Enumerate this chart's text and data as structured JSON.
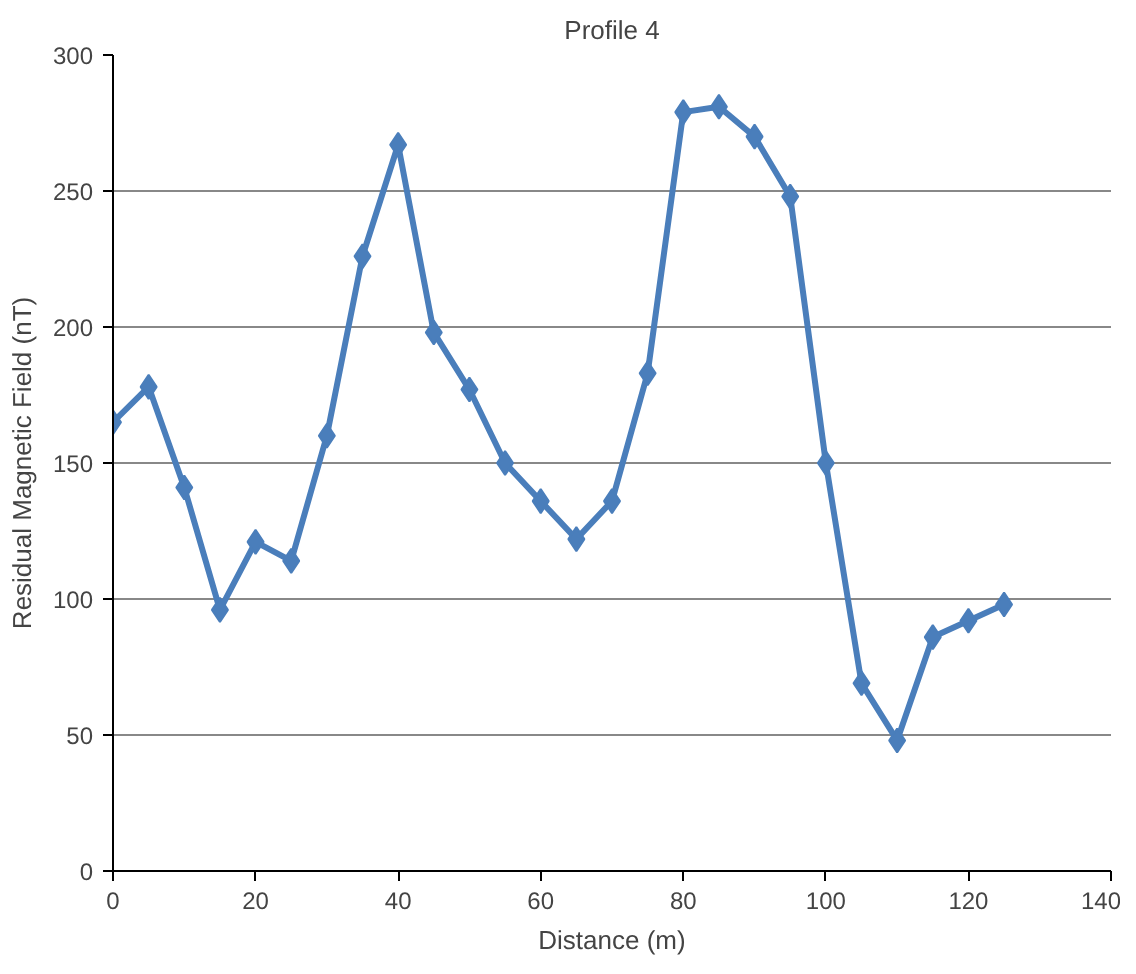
{
  "chart_data": {
    "type": "line",
    "title": "Profile 4",
    "xlabel": "Distance (m)",
    "ylabel": "Residual Magnetic Field (nT)",
    "x": [
      0,
      5,
      10,
      15,
      20,
      25,
      30,
      35,
      40,
      45,
      50,
      55,
      60,
      65,
      70,
      75,
      80,
      85,
      90,
      95,
      100,
      105,
      110,
      115,
      120,
      125
    ],
    "series": [
      {
        "color": "#4a7ebb",
        "values": [
          165,
          178,
          141,
          96,
          121,
          114,
          160,
          226,
          267,
          198,
          177,
          150,
          136,
          122,
          136,
          183,
          279,
          281,
          270,
          248,
          150,
          69,
          48,
          86,
          92,
          98
        ]
      }
    ],
    "xlim": [
      0,
      140
    ],
    "xticks": [
      0,
      20,
      40,
      60,
      80,
      100,
      120,
      140
    ],
    "ylim": [
      0,
      300
    ],
    "yticks": [
      0,
      50,
      100,
      150,
      200,
      250,
      300
    ],
    "grid": "y",
    "marker": "diamond",
    "line_style": "solid"
  }
}
